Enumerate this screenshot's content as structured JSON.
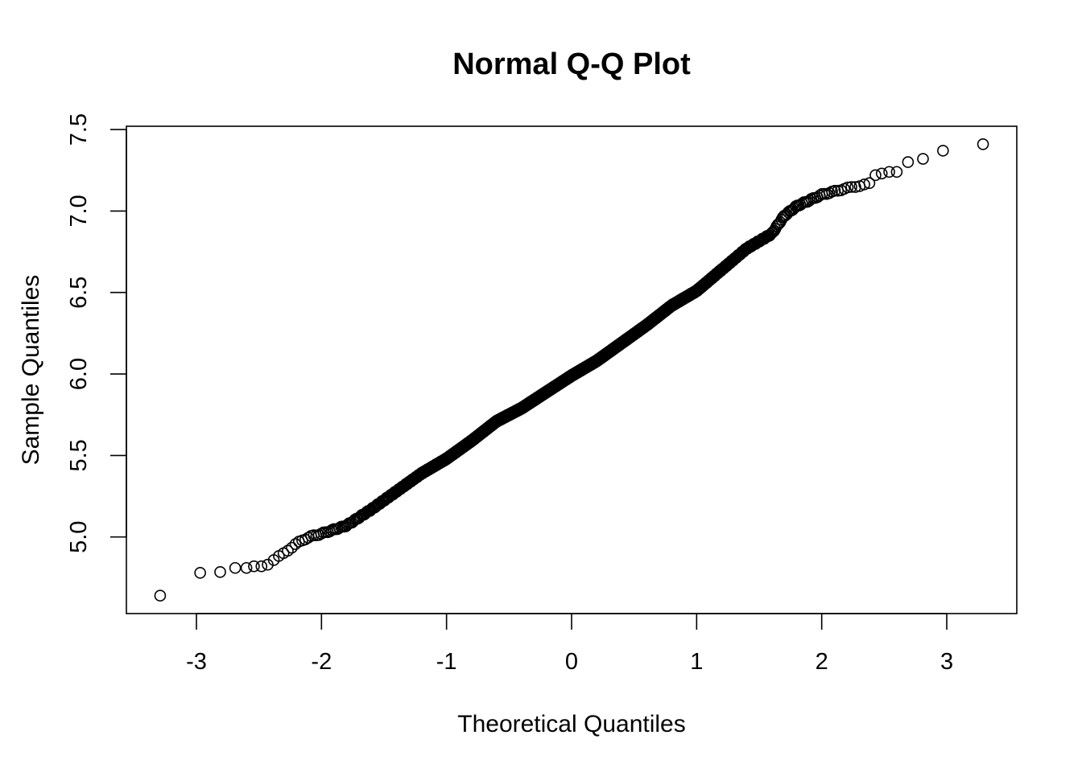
{
  "chart_data": {
    "type": "scatter",
    "title": "Normal Q-Q Plot",
    "xlabel": "Theoretical Quantiles",
    "ylabel": "Sample Quantiles",
    "xlim": [
      -3.56,
      3.56
    ],
    "ylim": [
      4.53,
      7.52
    ],
    "x_ticks": [
      -3,
      -2,
      -1,
      0,
      1,
      2,
      3
    ],
    "x_tick_labels": [
      "-3",
      "-2",
      "-1",
      "0",
      "1",
      "2",
      "3"
    ],
    "y_ticks": [
      5.0,
      5.5,
      6.0,
      6.5,
      7.0,
      7.5
    ],
    "y_tick_labels": [
      "5.0",
      "5.5",
      "6.0",
      "6.5",
      "7.0",
      "7.5"
    ],
    "grid": false,
    "marker": "open-circle",
    "n_points_approx": 1000,
    "tail_points": [
      {
        "x": -3.29,
        "y": 4.64
      },
      {
        "x": -2.97,
        "y": 4.78
      },
      {
        "x": -2.81,
        "y": 4.785
      },
      {
        "x": -2.69,
        "y": 4.81
      },
      {
        "x": -2.6,
        "y": 4.81
      },
      {
        "x": -2.54,
        "y": 4.82
      },
      {
        "x": -2.48,
        "y": 4.82
      },
      {
        "x": -2.43,
        "y": 4.83
      },
      {
        "x": 2.43,
        "y": 7.22
      },
      {
        "x": 2.48,
        "y": 7.23
      },
      {
        "x": 2.54,
        "y": 7.24
      },
      {
        "x": 2.6,
        "y": 7.24
      },
      {
        "x": 2.69,
        "y": 7.3
      },
      {
        "x": 2.81,
        "y": 7.32
      },
      {
        "x": 2.97,
        "y": 7.37
      },
      {
        "x": 3.29,
        "y": 7.41
      }
    ],
    "body_curve": [
      {
        "x": -2.4,
        "y": 4.85
      },
      {
        "x": -2.3,
        "y": 4.9
      },
      {
        "x": -2.2,
        "y": 4.96
      },
      {
        "x": -2.1,
        "y": 5.0
      },
      {
        "x": -2.0,
        "y": 5.02
      },
      {
        "x": -1.8,
        "y": 5.07
      },
      {
        "x": -1.6,
        "y": 5.17
      },
      {
        "x": -1.4,
        "y": 5.28
      },
      {
        "x": -1.2,
        "y": 5.39
      },
      {
        "x": -1.0,
        "y": 5.48
      },
      {
        "x": -0.8,
        "y": 5.59
      },
      {
        "x": -0.6,
        "y": 5.71
      },
      {
        "x": -0.4,
        "y": 5.79
      },
      {
        "x": -0.2,
        "y": 5.89
      },
      {
        "x": 0.0,
        "y": 5.99
      },
      {
        "x": 0.2,
        "y": 6.08
      },
      {
        "x": 0.4,
        "y": 6.19
      },
      {
        "x": 0.6,
        "y": 6.3
      },
      {
        "x": 0.8,
        "y": 6.42
      },
      {
        "x": 1.0,
        "y": 6.51
      },
      {
        "x": 1.2,
        "y": 6.64
      },
      {
        "x": 1.4,
        "y": 6.77
      },
      {
        "x": 1.6,
        "y": 6.86
      },
      {
        "x": 1.7,
        "y": 6.97
      },
      {
        "x": 1.8,
        "y": 7.03
      },
      {
        "x": 2.0,
        "y": 7.1
      },
      {
        "x": 2.2,
        "y": 7.14
      },
      {
        "x": 2.4,
        "y": 7.17
      }
    ]
  }
}
